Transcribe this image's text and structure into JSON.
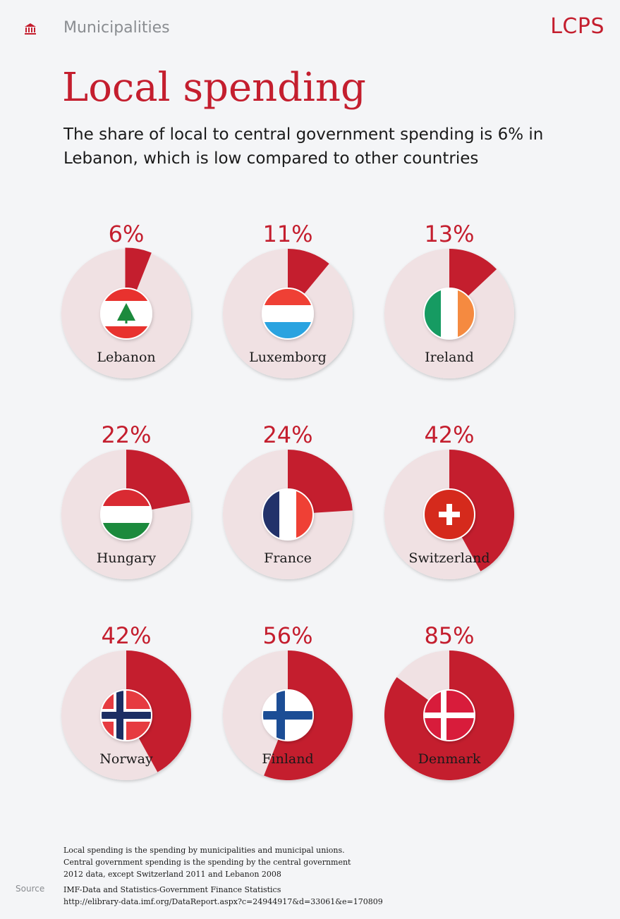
{
  "header": {
    "section": "Municipalities",
    "logo": "LCPS",
    "icon": "municipality-building-icon"
  },
  "colors": {
    "accent": "#c41e2e",
    "pie_bg": "#f0e1e3",
    "grey_text": "#8a8d91"
  },
  "title": "Local spending",
  "subtitle": "The share of local to central government spending is 6% in Lebanon, which is low compared to other countries",
  "chart_data": {
    "type": "pie",
    "title": "Local spending",
    "unit": "%",
    "categories": [
      "Lebanon",
      "Luxemborg",
      "Ireland",
      "Hungary",
      "France",
      "Switzerland",
      "Norway",
      "Finland",
      "Denmark"
    ],
    "values": [
      6,
      11,
      13,
      22,
      24,
      42,
      42,
      56,
      85
    ],
    "value_labels": [
      "6%",
      "11%",
      "13%",
      "22%",
      "24%",
      "42%",
      "42%",
      "56%",
      "85%"
    ],
    "flags": [
      "lebanon-flag",
      "luxembourg-flag",
      "ireland-flag",
      "hungary-flag",
      "france-flag",
      "switzerland-flag",
      "norway-flag",
      "finland-flag",
      "denmark-flag"
    ]
  },
  "notes": [
    "Local spending is the spending by municipalities and municipal unions.",
    "Central government spending is the spending by the central government",
    "2012 data, except Switzerland 2011 and Lebanon 2008"
  ],
  "source": {
    "label": "Source",
    "lines": [
      "IMF-Data and Statistics-Government Finance Statistics",
      "http://elibrary-data.imf.org/DataReport.aspx?c=24944917&d=33061&e=170809"
    ]
  }
}
